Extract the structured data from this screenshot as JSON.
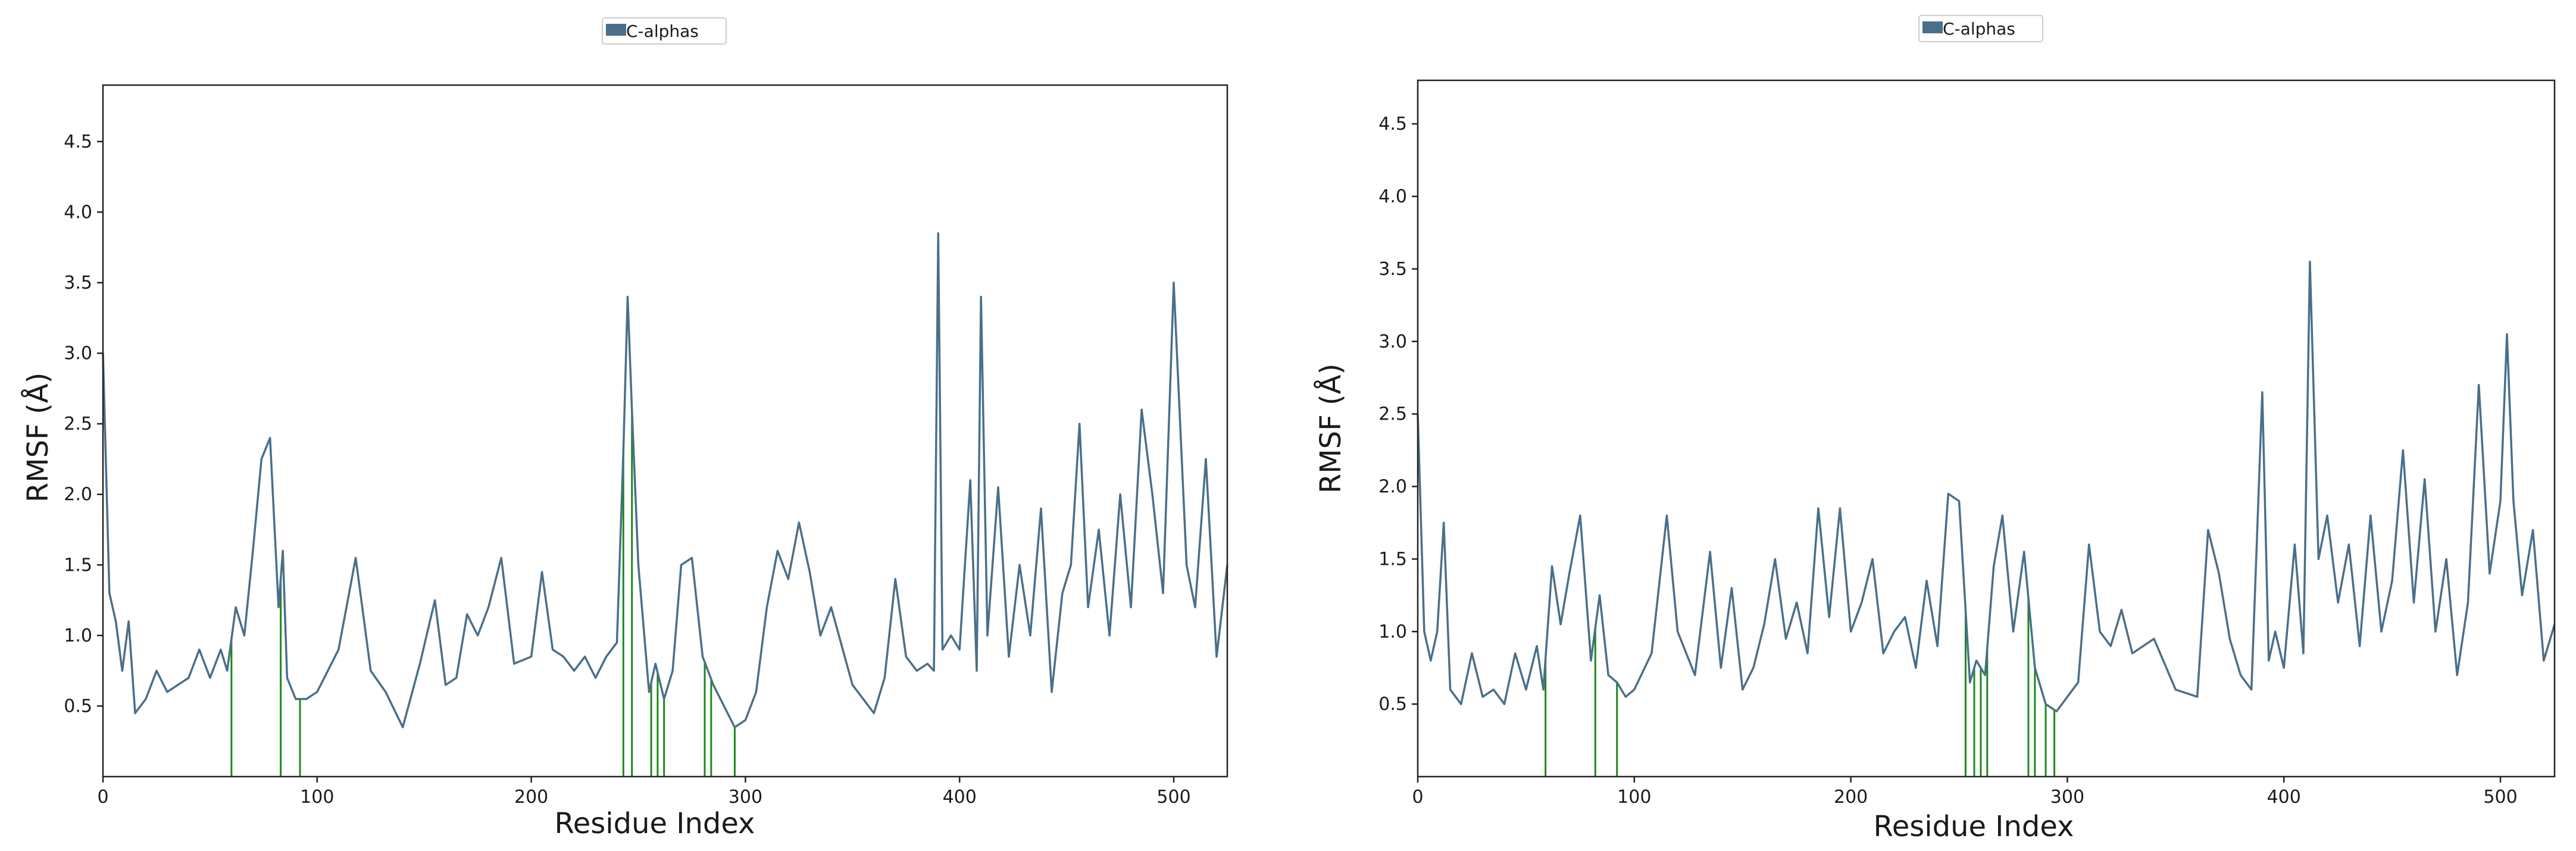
{
  "colors": {
    "series": "#4a6f8a",
    "contacts": "#1a8a1a",
    "axes": "#222222"
  },
  "chart_data": [
    {
      "type": "line",
      "title": "",
      "xlabel": "Residue Index",
      "ylabel": "RMSF (Å)",
      "xlim": [
        0,
        525
      ],
      "ylim": [
        0,
        4.9
      ],
      "xticks": [
        0,
        100,
        200,
        300,
        400,
        500
      ],
      "yticks": [
        0.5,
        1.0,
        1.5,
        2.0,
        2.5,
        3.0,
        3.5,
        4.0,
        4.5
      ],
      "xtick_labels": [
        "0",
        "100",
        "200",
        "300",
        "400",
        "500"
      ],
      "ytick_labels": [
        "0.5",
        "1.0",
        "1.5",
        "2.0",
        "2.5",
        "3.0",
        "3.5",
        "4.0",
        "4.5"
      ],
      "legend": {
        "placement": "top-center",
        "entries": [
          "C-alphas"
        ]
      },
      "series": [
        {
          "name": "C-alphas",
          "x": [
            0,
            3,
            6,
            9,
            12,
            15,
            20,
            25,
            30,
            35,
            40,
            45,
            50,
            55,
            58,
            62,
            66,
            70,
            74,
            78,
            82,
            84,
            86,
            90,
            95,
            100,
            110,
            118,
            125,
            132,
            140,
            148,
            155,
            160,
            165,
            170,
            175,
            180,
            186,
            192,
            200,
            205,
            210,
            215,
            220,
            225,
            230,
            235,
            240,
            243,
            245,
            247,
            250,
            255,
            258,
            262,
            266,
            270,
            275,
            280,
            285,
            290,
            295,
            300,
            305,
            310,
            315,
            320,
            325,
            330,
            335,
            340,
            350,
            360,
            365,
            370,
            375,
            380,
            385,
            388,
            390,
            392,
            396,
            400,
            405,
            408,
            410,
            413,
            418,
            423,
            428,
            433,
            438,
            443,
            448,
            452,
            456,
            460,
            465,
            470,
            475,
            480,
            485,
            490,
            495,
            500,
            503,
            506,
            510,
            515,
            520,
            525
          ],
          "values": [
            3.0,
            1.3,
            1.1,
            0.75,
            1.1,
            0.45,
            0.55,
            0.75,
            0.6,
            0.65,
            0.7,
            0.9,
            0.7,
            0.9,
            0.75,
            1.2,
            1.0,
            1.6,
            2.25,
            2.4,
            1.2,
            1.6,
            0.7,
            0.55,
            0.55,
            0.6,
            0.9,
            1.55,
            0.75,
            0.6,
            0.35,
            0.8,
            1.25,
            0.65,
            0.7,
            1.15,
            1.0,
            1.2,
            1.55,
            0.8,
            0.85,
            1.45,
            0.9,
            0.85,
            0.75,
            0.85,
            0.7,
            0.85,
            0.95,
            2.3,
            3.4,
            2.6,
            1.5,
            0.6,
            0.8,
            0.55,
            0.75,
            1.5,
            1.55,
            0.85,
            0.65,
            0.5,
            0.35,
            0.4,
            0.6,
            1.2,
            1.6,
            1.4,
            1.8,
            1.45,
            1.0,
            1.2,
            0.65,
            0.45,
            0.7,
            1.4,
            0.85,
            0.75,
            0.8,
            0.75,
            3.85,
            0.9,
            1.0,
            0.9,
            2.1,
            0.75,
            3.4,
            1.0,
            2.05,
            0.85,
            1.5,
            1.0,
            1.9,
            0.6,
            1.3,
            1.5,
            2.5,
            1.2,
            1.75,
            1.0,
            2.0,
            1.2,
            2.6,
            2.0,
            1.3,
            3.5,
            2.5,
            1.5,
            1.2,
            2.25,
            0.85,
            1.5
          ]
        }
      ],
      "contact_residues": [
        60,
        83,
        92,
        243,
        247,
        256,
        259,
        262,
        281,
        284,
        295
      ]
    },
    {
      "type": "line",
      "title": "",
      "xlabel": "Residue Index",
      "ylabel": "RMSF (Å)",
      "xlim": [
        0,
        525
      ],
      "ylim": [
        0,
        4.8
      ],
      "xticks": [
        0,
        100,
        200,
        300,
        400,
        500
      ],
      "yticks": [
        0.5,
        1.0,
        1.5,
        2.0,
        2.5,
        3.0,
        3.5,
        4.0,
        4.5
      ],
      "xtick_labels": [
        "0",
        "100",
        "200",
        "300",
        "400",
        "500"
      ],
      "ytick_labels": [
        "0.5",
        "1.0",
        "1.5",
        "2.0",
        "2.5",
        "3.0",
        "3.5",
        "4.0",
        "4.5"
      ],
      "legend": {
        "placement": "top-center",
        "entries": [
          "C-alphas"
        ]
      },
      "series": [
        {
          "name": "C-alphas",
          "x": [
            0,
            3,
            6,
            9,
            12,
            15,
            20,
            25,
            30,
            35,
            40,
            45,
            50,
            55,
            58,
            62,
            66,
            70,
            75,
            80,
            84,
            88,
            92,
            96,
            100,
            108,
            115,
            120,
            128,
            135,
            140,
            145,
            150,
            155,
            160,
            165,
            170,
            175,
            180,
            185,
            190,
            195,
            200,
            205,
            210,
            215,
            220,
            225,
            230,
            235,
            240,
            245,
            250,
            255,
            258,
            262,
            266,
            270,
            275,
            280,
            285,
            290,
            295,
            300,
            305,
            310,
            315,
            320,
            325,
            330,
            340,
            350,
            360,
            365,
            370,
            375,
            380,
            385,
            390,
            393,
            396,
            400,
            405,
            409,
            412,
            416,
            420,
            425,
            430,
            435,
            440,
            445,
            450,
            455,
            460,
            465,
            470,
            475,
            480,
            485,
            490,
            495,
            500,
            503,
            506,
            510,
            515,
            520,
            525
          ],
          "values": [
            2.5,
            1.0,
            0.8,
            1.0,
            1.75,
            0.6,
            0.5,
            0.85,
            0.55,
            0.6,
            0.5,
            0.85,
            0.6,
            0.9,
            0.6,
            1.45,
            1.05,
            1.4,
            1.8,
            0.8,
            1.25,
            0.7,
            0.65,
            0.55,
            0.6,
            0.85,
            1.8,
            1.0,
            0.7,
            1.55,
            0.75,
            1.3,
            0.6,
            0.75,
            1.05,
            1.5,
            0.95,
            1.2,
            0.85,
            1.85,
            1.1,
            1.85,
            1.0,
            1.2,
            1.5,
            0.85,
            1.0,
            1.1,
            0.75,
            1.35,
            0.9,
            1.95,
            1.9,
            0.65,
            0.8,
            0.7,
            1.45,
            1.8,
            1.0,
            1.55,
            0.75,
            0.5,
            0.45,
            0.55,
            0.65,
            1.6,
            1.0,
            0.9,
            1.15,
            0.85,
            0.95,
            0.6,
            0.55,
            1.7,
            1.4,
            0.95,
            0.7,
            0.6,
            2.65,
            0.8,
            1.0,
            0.75,
            1.6,
            0.85,
            3.55,
            1.5,
            1.8,
            1.2,
            1.6,
            0.9,
            1.8,
            1.0,
            1.35,
            2.25,
            1.2,
            2.05,
            1.0,
            1.5,
            0.7,
            1.2,
            2.7,
            1.4,
            1.9,
            3.05,
            1.9,
            1.25,
            1.7,
            0.8,
            1.05
          ]
        }
      ],
      "contact_residues": [
        59,
        82,
        92,
        253,
        257,
        260,
        263,
        282,
        285,
        290,
        294
      ]
    }
  ]
}
